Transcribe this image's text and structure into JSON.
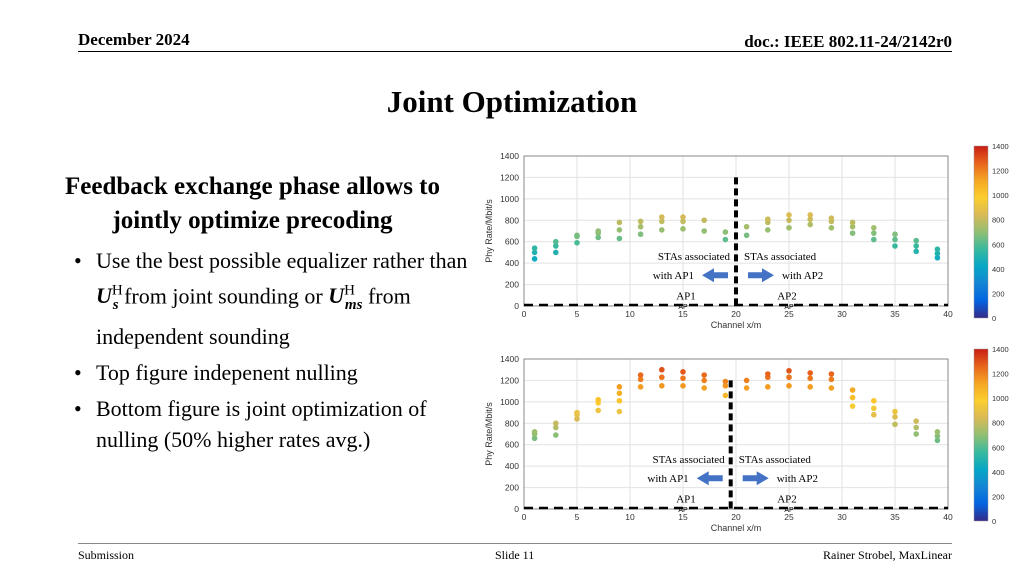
{
  "header": {
    "date": "December 2024",
    "doc": "doc.: IEEE 802.11-24/2142r0"
  },
  "title": "Joint Optimization",
  "heading": "Feedback exchange phase allows to jointly optimize precoding",
  "bullets": {
    "b1_a": "Use the best possible equalizer rather than ",
    "b1_sym1": "U",
    "b1_sub1": "s",
    "b1_b": " from joint sounding or ",
    "b1_sym2": "U",
    "b1_sub2": "ms",
    "b1_c": " from independent sounding",
    "sup": "H",
    "b2": "Top figure indepenent nulling",
    "b3": "Bottom figure is joint optimization of nulling (50% higher rates avg.)"
  },
  "footer": {
    "left": "Submission",
    "center": "Slide 11",
    "right": "Rainer Strobel, MaxLinear"
  },
  "colors": {
    "colormap": [
      "#352a87",
      "#0363e1",
      "#1485d4",
      "#06a7c6",
      "#38b99e",
      "#92bf73",
      "#d9ba56",
      "#fcce2e",
      "#f5a623",
      "#e8641c",
      "#c81e14"
    ]
  },
  "chart_data": [
    {
      "type": "scatter",
      "xlabel": "Channel x/m",
      "ylabel": "Phy Rate/Mbit/s",
      "xlim": [
        0,
        40
      ],
      "ylim": [
        0,
        1400
      ],
      "xticks": [
        0,
        5,
        10,
        15,
        20,
        25,
        30,
        35,
        40
      ],
      "yticks": [
        0,
        200,
        400,
        600,
        800,
        1000,
        1200,
        1400
      ],
      "colorbar": {
        "min": 0,
        "max": 1400,
        "ticks": [
          0,
          200,
          400,
          600,
          800,
          1000,
          1200,
          1400
        ]
      },
      "divider_x": 20,
      "annotations": {
        "left": "STAs associated with AP1",
        "right": "STAs associated with AP2",
        "ap1": "AP1",
        "ap2": "AP2",
        "ap_marker": "AP"
      },
      "ap_x": [
        15,
        25
      ],
      "points": [
        [
          1,
          440
        ],
        [
          1,
          500
        ],
        [
          1,
          540
        ],
        [
          3,
          500
        ],
        [
          3,
          560
        ],
        [
          3,
          600
        ],
        [
          5,
          590
        ],
        [
          5,
          650
        ],
        [
          5,
          660
        ],
        [
          7,
          640
        ],
        [
          7,
          680
        ],
        [
          7,
          700
        ],
        [
          9,
          630
        ],
        [
          9,
          710
        ],
        [
          9,
          780
        ],
        [
          11,
          670
        ],
        [
          11,
          740
        ],
        [
          11,
          790
        ],
        [
          13,
          710
        ],
        [
          13,
          790
        ],
        [
          13,
          830
        ],
        [
          15,
          720
        ],
        [
          15,
          790
        ],
        [
          15,
          830
        ],
        [
          17,
          700
        ],
        [
          17,
          800
        ],
        [
          19,
          620
        ],
        [
          19,
          690
        ],
        [
          21,
          660
        ],
        [
          21,
          740
        ],
        [
          23,
          710
        ],
        [
          23,
          780
        ],
        [
          23,
          810
        ],
        [
          25,
          730
        ],
        [
          25,
          800
        ],
        [
          25,
          850
        ],
        [
          27,
          760
        ],
        [
          27,
          810
        ],
        [
          27,
          850
        ],
        [
          29,
          730
        ],
        [
          29,
          790
        ],
        [
          29,
          820
        ],
        [
          31,
          680
        ],
        [
          31,
          740
        ],
        [
          31,
          780
        ],
        [
          33,
          620
        ],
        [
          33,
          680
        ],
        [
          33,
          730
        ],
        [
          35,
          560
        ],
        [
          35,
          620
        ],
        [
          35,
          670
        ],
        [
          37,
          510
        ],
        [
          37,
          560
        ],
        [
          37,
          610
        ],
        [
          39,
          450
        ],
        [
          39,
          490
        ],
        [
          39,
          530
        ]
      ]
    },
    {
      "type": "scatter",
      "xlabel": "Channel x/m",
      "ylabel": "Phy Rate/Mbit/s",
      "xlim": [
        0,
        40
      ],
      "ylim": [
        0,
        1400
      ],
      "xticks": [
        0,
        5,
        10,
        15,
        20,
        25,
        30,
        35,
        40
      ],
      "yticks": [
        0,
        200,
        400,
        600,
        800,
        1000,
        1200,
        1400
      ],
      "colorbar": {
        "min": 0,
        "max": 1400,
        "ticks": [
          0,
          200,
          400,
          600,
          800,
          1000,
          1200,
          1400
        ]
      },
      "divider_x": 19.5,
      "annotations": {
        "left": "STAs associated with AP1",
        "right": "STAs associated with AP2",
        "ap1": "AP1",
        "ap2": "AP2",
        "ap_marker": "AP"
      },
      "ap_x": [
        15,
        25
      ],
      "points": [
        [
          1,
          660
        ],
        [
          1,
          700
        ],
        [
          1,
          720
        ],
        [
          3,
          690
        ],
        [
          3,
          760
        ],
        [
          3,
          800
        ],
        [
          5,
          840
        ],
        [
          5,
          880
        ],
        [
          5,
          900
        ],
        [
          7,
          920
        ],
        [
          7,
          990
        ],
        [
          7,
          1020
        ],
        [
          9,
          910
        ],
        [
          9,
          1010
        ],
        [
          9,
          1080
        ],
        [
          9,
          1140
        ],
        [
          11,
          1140
        ],
        [
          11,
          1210
        ],
        [
          11,
          1250
        ],
        [
          13,
          1150
        ],
        [
          13,
          1230
        ],
        [
          13,
          1300
        ],
        [
          15,
          1150
        ],
        [
          15,
          1220
        ],
        [
          15,
          1280
        ],
        [
          17,
          1130
        ],
        [
          17,
          1200
        ],
        [
          17,
          1250
        ],
        [
          19,
          1060
        ],
        [
          19,
          1150
        ],
        [
          19,
          1190
        ],
        [
          21,
          1130
        ],
        [
          21,
          1200
        ],
        [
          23,
          1140
        ],
        [
          23,
          1230
        ],
        [
          23,
          1260
        ],
        [
          25,
          1150
        ],
        [
          25,
          1230
        ],
        [
          25,
          1290
        ],
        [
          27,
          1140
        ],
        [
          27,
          1220
        ],
        [
          27,
          1270
        ],
        [
          29,
          1130
        ],
        [
          29,
          1210
        ],
        [
          29,
          1260
        ],
        [
          31,
          960
        ],
        [
          31,
          1040
        ],
        [
          31,
          1110
        ],
        [
          33,
          880
        ],
        [
          33,
          940
        ],
        [
          33,
          1010
        ],
        [
          35,
          790
        ],
        [
          35,
          860
        ],
        [
          35,
          910
        ],
        [
          37,
          700
        ],
        [
          37,
          760
        ],
        [
          37,
          820
        ],
        [
          39,
          640
        ],
        [
          39,
          680
        ],
        [
          39,
          720
        ]
      ]
    }
  ]
}
